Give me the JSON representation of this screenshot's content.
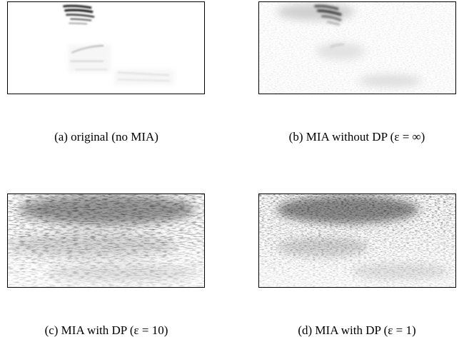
{
  "figure": {
    "panels": [
      {
        "id": "a",
        "caption": "(a) original (no MIA)"
      },
      {
        "id": "b",
        "caption": "(b) MIA without DP (ε = ∞)"
      },
      {
        "id": "c",
        "caption": "(c) MIA with DP (ε = 10)"
      },
      {
        "id": "d",
        "caption": "(d) MIA with DP (ε = 1)"
      }
    ]
  }
}
